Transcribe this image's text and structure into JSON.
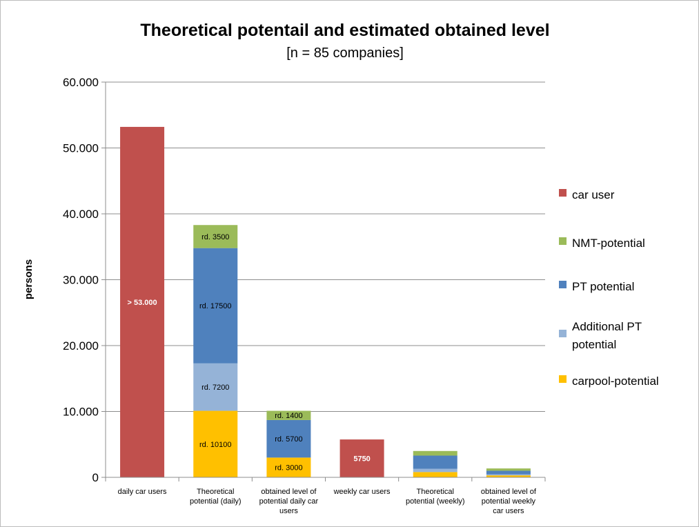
{
  "chart_data": {
    "type": "bar",
    "stacked": true,
    "title": "Theoretical potentail and estimated obtained level",
    "subtitle": "[n = 85 companies]",
    "xlabel": "",
    "ylabel": "persons",
    "ylim": [
      0,
      60000
    ],
    "yticks": [
      0,
      10000,
      20000,
      30000,
      40000,
      50000,
      60000
    ],
    "ytick_labels": [
      "0",
      "10.000",
      "20.000",
      "30.000",
      "40.000",
      "50.000",
      "60.000"
    ],
    "grid": true,
    "legend_position": "right",
    "categories": [
      "daily car users",
      "Theoretical potential (daily)",
      "obtained level of potential daily car users",
      "weekly car users",
      "Theoretical potential (weekly)",
      "obtained level of potential weekly car users"
    ],
    "category_label_lines": [
      [
        "daily car users"
      ],
      [
        "Theoretical",
        "potential (daily)"
      ],
      [
        "obtained level of",
        "potential daily car",
        "users"
      ],
      [
        "weekly car users"
      ],
      [
        "Theoretical",
        "potential (weekly)"
      ],
      [
        "obtained level of",
        "potential weekly",
        "car users"
      ]
    ],
    "series": [
      {
        "name": "carpool-potential",
        "color": "#FFC000",
        "values": [
          0,
          10100,
          3000,
          0,
          800,
          300
        ],
        "labels": [
          "",
          "rd. 10100",
          "rd. 3000",
          "",
          "",
          ""
        ]
      },
      {
        "name": "Additional PT potential",
        "color": "#95B3D7",
        "values": [
          0,
          7200,
          0,
          0,
          500,
          150
        ],
        "labels": [
          "",
          "rd. 7200",
          "",
          "",
          "",
          ""
        ]
      },
      {
        "name": "PT potential",
        "color": "#4F81BD",
        "values": [
          0,
          17500,
          5700,
          0,
          2000,
          550
        ],
        "labels": [
          "",
          "rd. 17500",
          "rd. 5700",
          "",
          "",
          ""
        ]
      },
      {
        "name": "NMT-potential",
        "color": "#9BBB59",
        "values": [
          0,
          3500,
          1400,
          0,
          700,
          350
        ],
        "labels": [
          "",
          "rd. 3500",
          "rd. 1400",
          "",
          "",
          ""
        ]
      },
      {
        "name": "car user",
        "color": "#C0504D",
        "values": [
          53200,
          0,
          0,
          5750,
          0,
          0
        ],
        "labels": [
          "> 53.000",
          "",
          "",
          "5750",
          "",
          ""
        ]
      }
    ],
    "legend": [
      {
        "name": "car user",
        "color": "#C0504D"
      },
      {
        "name": "NMT-potential",
        "color": "#9BBB59"
      },
      {
        "name": "PT potential",
        "color": "#4F81BD"
      },
      {
        "name": "Additional PT potential",
        "color": "#95B3D7",
        "lines": [
          "Additional PT",
          "potential"
        ]
      },
      {
        "name": "carpool-potential",
        "color": "#FFC000"
      }
    ]
  }
}
